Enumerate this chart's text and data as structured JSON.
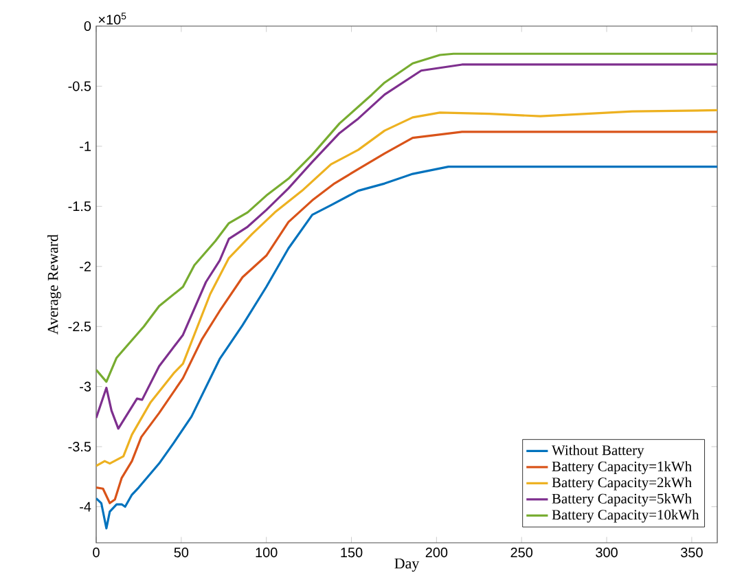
{
  "chart_data": {
    "type": "line",
    "xlabel": "Day",
    "ylabel": "Average Reward",
    "annotations": [
      "×10$^{5}$"
    ],
    "xlim": [
      0,
      365
    ],
    "ylim": [
      -4.3,
      0
    ],
    "xticks": [
      0,
      50,
      100,
      150,
      200,
      250,
      300,
      350
    ],
    "yticks": [
      -4,
      -3.5,
      -3,
      -2.5,
      -2,
      -1.5,
      -1,
      -0.5,
      0
    ],
    "grid": false,
    "legend": "bottom right",
    "marker": "none",
    "line_style": "solid",
    "series": [
      {
        "name": "Without Battery",
        "color": "#0072bd",
        "x": [
          0,
          3,
          6,
          8,
          12,
          15,
          17,
          21,
          25,
          37,
          45.5,
          56,
          72.6,
          86,
          100,
          113,
          127,
          138,
          154,
          169.5,
          186,
          207,
          250,
          300,
          365
        ],
        "values": [
          -3.93,
          -3.97,
          -4.18,
          -4.04,
          -3.98,
          -3.98,
          -4.0,
          -3.9,
          -3.84,
          -3.64,
          -3.47,
          -3.25,
          -2.77,
          -2.49,
          -2.17,
          -1.85,
          -1.57,
          -1.49,
          -1.37,
          -1.31,
          -1.23,
          -1.17,
          -1.17,
          -1.17,
          -1.17
        ]
      },
      {
        "name": "Battery Capacity=1kWh",
        "color": "#d95319",
        "x": [
          0,
          4,
          8,
          11,
          15,
          21,
          26.5,
          37,
          51,
          62,
          72.6,
          86,
          100,
          113,
          127,
          140,
          154,
          169.5,
          186,
          215,
          300,
          365
        ],
        "values": [
          -3.84,
          -3.85,
          -3.97,
          -3.94,
          -3.76,
          -3.62,
          -3.42,
          -3.22,
          -2.93,
          -2.61,
          -2.37,
          -2.09,
          -1.91,
          -1.63,
          -1.45,
          -1.31,
          -1.19,
          -1.06,
          -0.93,
          -0.88,
          -0.88,
          -0.88
        ]
      },
      {
        "name": "Battery Capacity=2kWh",
        "color": "#edb120",
        "x": [
          0,
          5,
          8,
          16,
          21,
          32,
          45.5,
          51,
          67,
          78,
          91.6,
          105,
          121,
          138,
          154,
          169.5,
          186,
          202,
          231,
          261,
          315,
          365
        ],
        "values": [
          -3.66,
          -3.62,
          -3.64,
          -3.58,
          -3.4,
          -3.13,
          -2.89,
          -2.81,
          -2.23,
          -1.93,
          -1.73,
          -1.55,
          -1.37,
          -1.15,
          -1.03,
          -0.87,
          -0.76,
          -0.72,
          -0.73,
          -0.75,
          -0.71,
          -0.7
        ]
      },
      {
        "name": "Battery Capacity=5kWh",
        "color": "#7e2f8e",
        "x": [
          0,
          6,
          9,
          13,
          24,
          27,
          37,
          51,
          64.5,
          72.6,
          78,
          89,
          100,
          113,
          127,
          143,
          154,
          169.5,
          191,
          215,
          300,
          365
        ],
        "values": [
          -3.26,
          -3.01,
          -3.2,
          -3.35,
          -3.1,
          -3.11,
          -2.83,
          -2.57,
          -2.13,
          -1.95,
          -1.77,
          -1.67,
          -1.53,
          -1.35,
          -1.13,
          -0.89,
          -0.77,
          -0.57,
          -0.37,
          -0.32,
          -0.32,
          -0.32
        ]
      },
      {
        "name": "Battery Capacity=10kWh",
        "color": "#77ac30",
        "x": [
          0,
          6,
          12,
          28,
          37,
          51,
          57.7,
          70,
          78,
          89,
          100,
          113,
          127,
          143,
          162,
          169.5,
          186,
          202,
          210,
          300,
          365
        ],
        "values": [
          -2.86,
          -2.96,
          -2.76,
          -2.5,
          -2.33,
          -2.17,
          -1.99,
          -1.79,
          -1.64,
          -1.55,
          -1.41,
          -1.27,
          -1.07,
          -0.81,
          -0.57,
          -0.47,
          -0.31,
          -0.24,
          -0.23,
          -0.23,
          -0.23
        ]
      }
    ]
  }
}
